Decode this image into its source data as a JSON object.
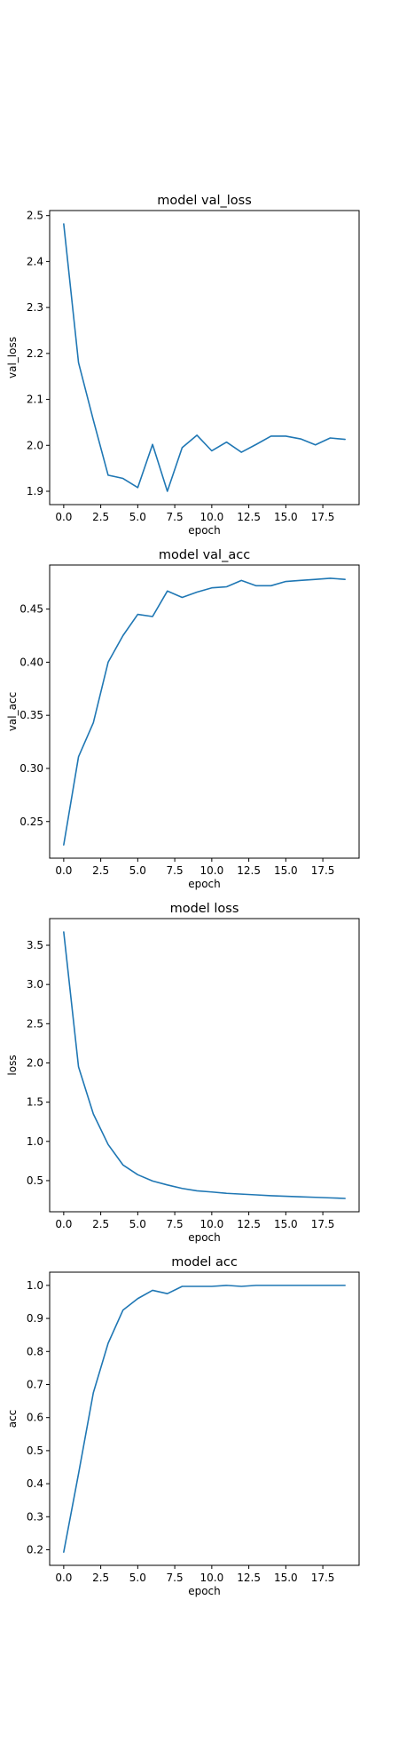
{
  "colors": {
    "series": "#1f77b4"
  },
  "chart_data": [
    {
      "type": "line",
      "title": "model val_loss",
      "xlabel": "epoch",
      "ylabel": "val_loss",
      "x": [
        0,
        1,
        2,
        3,
        4,
        5,
        6,
        7,
        8,
        9,
        10,
        11,
        12,
        13,
        14,
        15,
        16,
        17,
        18,
        19
      ],
      "series": [
        {
          "values": [
            2.482,
            2.18,
            2.055,
            1.935,
            1.928,
            1.908,
            2.002,
            1.9,
            1.995,
            2.022,
            1.988,
            2.007,
            1.985,
            2.002,
            2.02,
            2.02,
            2.014,
            2.001,
            2.016,
            2.013
          ]
        }
      ],
      "xlim": [
        -0.95,
        19.95
      ],
      "ylim": [
        1.871,
        2.511
      ],
      "xticks": [
        "0.0",
        "2.5",
        "5.0",
        "7.5",
        "10.0",
        "12.5",
        "15.0",
        "17.5"
      ],
      "yticks": [
        "1.9",
        "2.0",
        "2.1",
        "2.2",
        "2.3",
        "2.4",
        "2.5"
      ],
      "grid": false,
      "legend": "none"
    },
    {
      "type": "line",
      "title": "model val_acc",
      "xlabel": "epoch",
      "ylabel": "val_acc",
      "x": [
        0,
        1,
        2,
        3,
        4,
        5,
        6,
        7,
        8,
        9,
        10,
        11,
        12,
        13,
        14,
        15,
        16,
        17,
        18,
        19
      ],
      "series": [
        {
          "values": [
            0.228,
            0.311,
            0.343,
            0.4,
            0.425,
            0.445,
            0.443,
            0.467,
            0.461,
            0.466,
            0.47,
            0.471,
            0.477,
            0.472,
            0.472,
            0.476,
            0.477,
            0.478,
            0.479,
            0.478
          ]
        }
      ],
      "xlim": [
        -0.95,
        19.95
      ],
      "ylim": [
        0.2155,
        0.4915
      ],
      "xticks": [
        "0.0",
        "2.5",
        "5.0",
        "7.5",
        "10.0",
        "12.5",
        "15.0",
        "17.5"
      ],
      "yticks": [
        "0.25",
        "0.30",
        "0.35",
        "0.40",
        "0.45"
      ],
      "grid": false,
      "legend": "none"
    },
    {
      "type": "line",
      "title": "model loss",
      "xlabel": "epoch",
      "ylabel": "loss",
      "x": [
        0,
        1,
        2,
        3,
        4,
        5,
        6,
        7,
        8,
        9,
        10,
        11,
        12,
        13,
        14,
        15,
        16,
        17,
        18,
        19
      ],
      "series": [
        {
          "values": [
            3.67,
            1.95,
            1.35,
            0.96,
            0.7,
            0.575,
            0.495,
            0.445,
            0.4,
            0.37,
            0.355,
            0.338,
            0.328,
            0.318,
            0.308,
            0.3,
            0.293,
            0.287,
            0.28,
            0.273
          ]
        }
      ],
      "xlim": [
        -0.95,
        19.95
      ],
      "ylim": [
        0.103,
        3.84
      ],
      "xticks": [
        "0.0",
        "2.5",
        "5.0",
        "7.5",
        "10.0",
        "12.5",
        "15.0",
        "17.5"
      ],
      "yticks": [
        "0.5",
        "1.0",
        "1.5",
        "2.0",
        "2.5",
        "3.0",
        "3.5"
      ],
      "grid": false,
      "legend": "none"
    },
    {
      "type": "line",
      "title": "model acc",
      "xlabel": "epoch",
      "ylabel": "acc",
      "x": [
        0,
        1,
        2,
        3,
        4,
        5,
        6,
        7,
        8,
        9,
        10,
        11,
        12,
        13,
        14,
        15,
        16,
        17,
        18,
        19
      ],
      "series": [
        {
          "values": [
            0.193,
            0.43,
            0.675,
            0.825,
            0.925,
            0.96,
            0.985,
            0.975,
            0.997,
            0.997,
            0.997,
            1.0,
            0.997,
            1.0,
            1.0,
            1.0,
            1.0,
            1.0,
            1.0,
            1.0
          ]
        }
      ],
      "xlim": [
        -0.95,
        19.95
      ],
      "ylim": [
        0.153,
        1.04
      ],
      "xticks": [
        "0.0",
        "2.5",
        "5.0",
        "7.5",
        "10.0",
        "12.5",
        "15.0",
        "17.5"
      ],
      "yticks": [
        "0.2",
        "0.3",
        "0.4",
        "0.5",
        "0.6",
        "0.7",
        "0.8",
        "0.9",
        "1.0"
      ],
      "grid": false,
      "legend": "none"
    }
  ]
}
